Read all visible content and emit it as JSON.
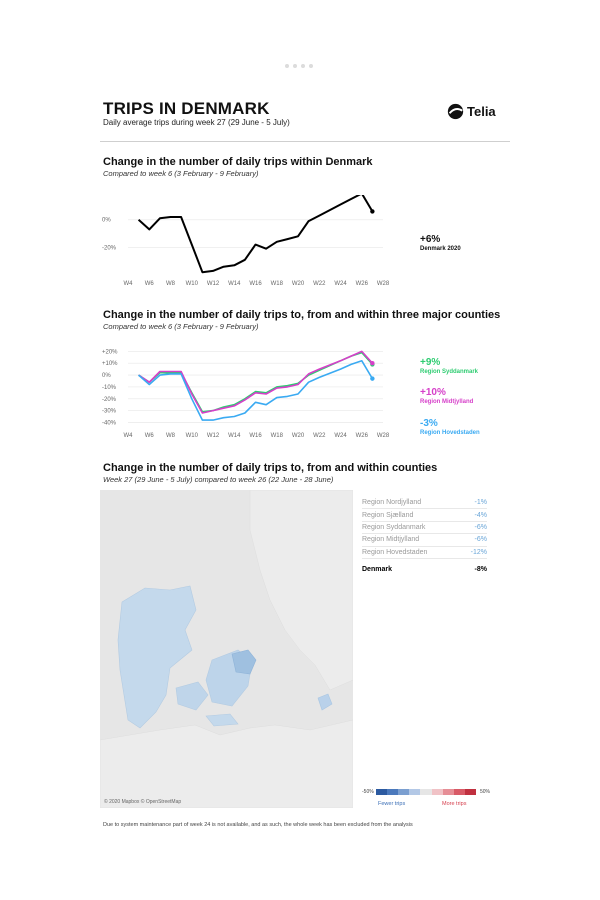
{
  "header": {
    "title": "TRIPS IN DENMARK",
    "subtitle": "Daily average trips during week 27 (29 June - 5 July)",
    "brand": "Telia",
    "brand_icon": "telia-logo-icon"
  },
  "chart1": {
    "title": "Change in the number of daily trips within Denmark",
    "subtitle": "Compared to week 6 (3 February - 9 February)",
    "end_value": "+6%",
    "end_label": "Denmark 2020"
  },
  "chart2": {
    "title": "Change in the number of daily trips to, from and within three major counties",
    "subtitle": "Compared to week 6 (3 February - 9 February)",
    "callouts": [
      {
        "value": "+9%",
        "label": "Region Syddanmark",
        "color": "#2ecc71"
      },
      {
        "value": "+10%",
        "label": "Region Midtjylland",
        "color": "#d63fc9"
      },
      {
        "value": "-3%",
        "label": "Region Hovedstaden",
        "color": "#3aaaf2"
      }
    ]
  },
  "section3": {
    "title": "Change in the number of daily trips to, from and within counties",
    "subtitle": "Week 27 (29 June - 5 July) compared to week 26 (22 June - 28 June)",
    "table": [
      {
        "region": "Region Nordjylland",
        "value": "-1%"
      },
      {
        "region": "Region Sjælland",
        "value": "-4%"
      },
      {
        "region": "Region Syddanmark",
        "value": "-6%"
      },
      {
        "region": "Region Midtjylland",
        "value": "-6%"
      },
      {
        "region": "Region Hovedstaden",
        "value": "-12%"
      }
    ],
    "total": {
      "region": "Denmark",
      "value": "-8%"
    },
    "map_credit": "© 2020 Mapbox © OpenStreetMap",
    "legend": {
      "min": "-50%",
      "max": "50%",
      "fewer": "Fewer trips",
      "more": "More trips",
      "fewer_color": "#3b6fb6",
      "more_color": "#d6414f"
    }
  },
  "footnote": "Due to system maintenance part of week 24 is not available, and as such, the whole week has been excluded from the analysis",
  "chart_data": [
    {
      "type": "line",
      "title": "Change in the number of daily trips within Denmark",
      "x": [
        "W5",
        "W6",
        "W7",
        "W8",
        "W9",
        "W10",
        "W11",
        "W12",
        "W13",
        "W14",
        "W15",
        "W16",
        "W17",
        "W18",
        "W19",
        "W20",
        "W21",
        "W22",
        "W23",
        "W24",
        "W25",
        "W26",
        "W27"
      ],
      "x_tick_labels": [
        "W4",
        "W6",
        "W8",
        "W10",
        "W12",
        "W14",
        "W16",
        "W18",
        "W20",
        "W22",
        "W24",
        "W26",
        "W28"
      ],
      "y_tick_labels": [
        "0%",
        "-20%"
      ],
      "ylim": [
        -40,
        15
      ],
      "grid": true,
      "series": [
        {
          "name": "Denmark 2020",
          "color": "#000000",
          "values": [
            0,
            -7,
            1,
            2,
            2,
            -18,
            -38,
            -37,
            -34,
            -33,
            -29,
            -18,
            -21,
            -16,
            -14,
            -12,
            -1,
            3,
            null,
            11,
            15,
            19,
            6
          ]
        }
      ]
    },
    {
      "type": "line",
      "title": "Change in the number of daily trips to, from and within three major counties",
      "x": [
        "W5",
        "W6",
        "W7",
        "W8",
        "W9",
        "W10",
        "W11",
        "W12",
        "W13",
        "W14",
        "W15",
        "W16",
        "W17",
        "W18",
        "W19",
        "W20",
        "W21",
        "W22",
        "W23",
        "W24",
        "W25",
        "W26",
        "W27"
      ],
      "x_tick_labels": [
        "W4",
        "W6",
        "W8",
        "W10",
        "W12",
        "W14",
        "W16",
        "W18",
        "W20",
        "W22",
        "W24",
        "W26",
        "W28"
      ],
      "y_tick_labels": [
        "+20%",
        "+10%",
        "0%",
        "-10%",
        "-20%",
        "-30%",
        "-40%"
      ],
      "ylim": [
        -43,
        22
      ],
      "grid": true,
      "series": [
        {
          "name": "Region Syddanmark",
          "color": "#2ecc71",
          "values": [
            0,
            -6,
            2,
            2,
            2,
            -15,
            -31,
            -30,
            -27,
            -25,
            -20,
            -14,
            -15,
            -10,
            -9,
            -7,
            0,
            4,
            null,
            12,
            16,
            19,
            9
          ]
        },
        {
          "name": "Region Midtjylland",
          "color": "#d63fc9",
          "values": [
            0,
            -6,
            3,
            3,
            3,
            -16,
            -32,
            -30,
            -28,
            -26,
            -21,
            -15,
            -16,
            -11,
            -10,
            -8,
            1,
            5,
            null,
            12,
            16,
            20,
            10
          ]
        },
        {
          "name": "Region Hovedstaden",
          "color": "#3aaaf2",
          "values": [
            0,
            -8,
            0,
            1,
            1,
            -20,
            -38,
            -38,
            -36,
            -35,
            -32,
            -23,
            -25,
            -19,
            -18,
            -16,
            -6,
            -2,
            null,
            5,
            9,
            12,
            -3
          ]
        }
      ]
    }
  ]
}
